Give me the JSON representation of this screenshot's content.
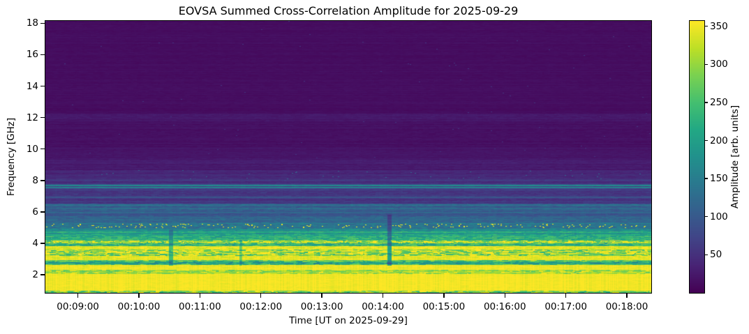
{
  "title": "EOVSA Summed Cross-Correlation Amplitude for 2025-09-29",
  "chart_data": {
    "type": "heatmap",
    "title": "EOVSA Summed Cross-Correlation Amplitude for 2025-09-29",
    "xlabel": "Time [UT on 2025-09-29]",
    "ylabel": "Frequency [GHz]",
    "colorbar_label": "Amplitude [arb. units]",
    "colormap": "viridis",
    "grid": false,
    "x_range": {
      "t_min_seconds": 508,
      "t_max_seconds": 1104
    },
    "y_range": {
      "f_min_ghz": 0.85,
      "f_max_ghz": 18.15
    },
    "color_range": {
      "vmin": 0,
      "vmax": 357
    },
    "x_ticks": [
      {
        "t_seconds": 540,
        "label": "00:09:00"
      },
      {
        "t_seconds": 600,
        "label": "00:10:00"
      },
      {
        "t_seconds": 660,
        "label": "00:11:00"
      },
      {
        "t_seconds": 720,
        "label": "00:12:00"
      },
      {
        "t_seconds": 780,
        "label": "00:13:00"
      },
      {
        "t_seconds": 840,
        "label": "00:14:00"
      },
      {
        "t_seconds": 900,
        "label": "00:15:00"
      },
      {
        "t_seconds": 960,
        "label": "00:16:00"
      },
      {
        "t_seconds": 1020,
        "label": "00:17:00"
      },
      {
        "t_seconds": 1080,
        "label": "00:18:00"
      }
    ],
    "y_ticks": [
      {
        "ghz": 2,
        "label": "2"
      },
      {
        "ghz": 4,
        "label": "4"
      },
      {
        "ghz": 6,
        "label": "6"
      },
      {
        "ghz": 8,
        "label": "8"
      },
      {
        "ghz": 10,
        "label": "10"
      },
      {
        "ghz": 12,
        "label": "12"
      },
      {
        "ghz": 14,
        "label": "14"
      },
      {
        "ghz": 16,
        "label": "16"
      },
      {
        "ghz": 18,
        "label": "18"
      }
    ],
    "colorbar_ticks": [
      {
        "value": 50,
        "label": "50"
      },
      {
        "value": 100,
        "label": "100"
      },
      {
        "value": 150,
        "label": "150"
      },
      {
        "value": 200,
        "label": "200"
      },
      {
        "value": 250,
        "label": "250"
      },
      {
        "value": 300,
        "label": "300"
      },
      {
        "value": 350,
        "label": "350"
      }
    ],
    "colormap_stops": [
      {
        "u": 0.0,
        "color": "#440154"
      },
      {
        "u": 0.1,
        "color": "#482475"
      },
      {
        "u": 0.2,
        "color": "#414487"
      },
      {
        "u": 0.3,
        "color": "#355f8d"
      },
      {
        "u": 0.4,
        "color": "#2a788e"
      },
      {
        "u": 0.5,
        "color": "#21918c"
      },
      {
        "u": 0.6,
        "color": "#22a884"
      },
      {
        "u": 0.7,
        "color": "#44bf70"
      },
      {
        "u": 0.8,
        "color": "#7ad151"
      },
      {
        "u": 0.9,
        "color": "#bddf26"
      },
      {
        "u": 1.0,
        "color": "#fde725"
      }
    ],
    "amplitude_profile_bands": [
      {
        "f_lo": 0.85,
        "f_hi": 1.0,
        "amp": 290,
        "row_jitter": 25,
        "texture": 70
      },
      {
        "f_lo": 1.0,
        "f_hi": 2.05,
        "amp": 352,
        "row_jitter": 2,
        "texture": 6
      },
      {
        "f_lo": 2.05,
        "f_hi": 2.32,
        "amp": 312,
        "row_jitter": 14,
        "texture": 45
      },
      {
        "f_lo": 2.32,
        "f_hi": 2.62,
        "amp": 350,
        "row_jitter": 3,
        "texture": 10
      },
      {
        "f_lo": 2.62,
        "f_hi": 2.95,
        "amp": 235,
        "row_jitter": 38,
        "texture": 55
      },
      {
        "f_lo": 2.95,
        "f_hi": 3.22,
        "amp": 344,
        "row_jitter": 5,
        "texture": 14
      },
      {
        "f_lo": 3.22,
        "f_hi": 3.62,
        "amp": 298,
        "row_jitter": 22,
        "texture": 80
      },
      {
        "f_lo": 3.62,
        "f_hi": 3.82,
        "amp": 342,
        "row_jitter": 6,
        "texture": 22
      },
      {
        "f_lo": 3.82,
        "f_hi": 4.0,
        "amp": 248,
        "row_jitter": 22,
        "texture": 50
      },
      {
        "f_lo": 4.0,
        "f_hi": 4.16,
        "amp": 302,
        "row_jitter": 14,
        "texture": 70
      },
      {
        "f_lo": 4.16,
        "f_hi": 4.44,
        "amp": 228,
        "row_jitter": 18,
        "texture": 40
      },
      {
        "f_lo": 4.44,
        "f_hi": 4.64,
        "amp": 208,
        "row_jitter": 14,
        "texture": 32
      },
      {
        "f_lo": 4.64,
        "f_hi": 4.94,
        "amp": 172,
        "row_jitter": 12,
        "texture": 24
      },
      {
        "f_lo": 4.94,
        "f_hi": 5.3,
        "amp": 140,
        "row_jitter": 10,
        "texture": 22
      },
      {
        "f_lo": 5.3,
        "f_hi": 5.75,
        "amp": 116,
        "row_jitter": 8,
        "texture": 16
      },
      {
        "f_lo": 5.75,
        "f_hi": 6.1,
        "amp": 96,
        "row_jitter": 8,
        "texture": 12
      },
      {
        "f_lo": 6.1,
        "f_hi": 6.55,
        "amp": 105,
        "row_jitter": 18,
        "texture": 16
      },
      {
        "f_lo": 6.55,
        "f_hi": 7.45,
        "amp": 56,
        "row_jitter": 10,
        "texture": 9
      },
      {
        "f_lo": 7.45,
        "f_hi": 7.78,
        "amp": 66,
        "row_jitter": 22,
        "texture": 10
      },
      {
        "f_lo": 7.78,
        "f_hi": 8.1,
        "amp": 48,
        "row_jitter": 8,
        "texture": 8
      },
      {
        "f_lo": 8.1,
        "f_hi": 8.65,
        "amp": 40,
        "row_jitter": 6,
        "texture": 7
      },
      {
        "f_lo": 8.65,
        "f_hi": 9.4,
        "amp": 27,
        "row_jitter": 5,
        "texture": 5
      },
      {
        "f_lo": 9.4,
        "f_hi": 10.1,
        "amp": 19,
        "row_jitter": 4,
        "texture": 4
      },
      {
        "f_lo": 10.1,
        "f_hi": 11.75,
        "amp": 16,
        "row_jitter": 4,
        "texture": 4
      },
      {
        "f_lo": 11.75,
        "f_hi": 12.25,
        "amp": 24,
        "row_jitter": 5,
        "texture": 5
      },
      {
        "f_lo": 12.25,
        "f_hi": 18.15,
        "amp": 13,
        "row_jitter": 3,
        "texture": 3
      }
    ],
    "narrow_band_lines": [
      {
        "f": 7.68,
        "amp": 165,
        "halfwidth": 0.03
      },
      {
        "f": 7.55,
        "amp": 150,
        "halfwidth": 0.03
      },
      {
        "f": 6.92,
        "amp": 92,
        "halfwidth": 0.03
      },
      {
        "f": 6.45,
        "amp": 138,
        "halfwidth": 0.04
      },
      {
        "f": 6.22,
        "amp": 126,
        "halfwidth": 0.04
      },
      {
        "f": 5.95,
        "amp": 118,
        "halfwidth": 0.03
      },
      {
        "f": 8.0,
        "amp": 66,
        "halfwidth": 0.03
      },
      {
        "f": 8.35,
        "amp": 52,
        "halfwidth": 0.03
      },
      {
        "f": 4.72,
        "amp": 225,
        "halfwidth": 0.04
      }
    ],
    "speckle_bands": [
      {
        "f_lo": 4.98,
        "f_hi": 5.26,
        "prob": 0.03,
        "amp": 348
      },
      {
        "f_lo": 4.0,
        "f_hi": 4.16,
        "prob": 0.05,
        "amp": 352
      },
      {
        "f_lo": 8.1,
        "f_hi": 8.65,
        "prob": 0.004,
        "amp": 110
      },
      {
        "f_lo": 9.4,
        "f_hi": 18.15,
        "prob": 0.0004,
        "amp": 55
      }
    ],
    "column_events": [
      {
        "t_seconds": 631,
        "halfwidth_seconds": 2,
        "f_lo": 2.6,
        "f_hi": 4.9,
        "mult": 0.72
      },
      {
        "t_seconds": 700,
        "halfwidth_seconds": 1.5,
        "f_lo": 2.6,
        "f_hi": 4.2,
        "mult": 0.8
      },
      {
        "t_seconds": 846,
        "halfwidth_seconds": 2,
        "f_lo": 2.6,
        "f_hi": 5.8,
        "mult": 0.6
      }
    ]
  }
}
